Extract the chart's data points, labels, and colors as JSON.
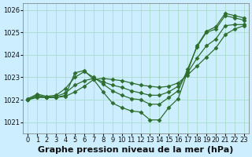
{
  "title": "Graphe pression niveau de la mer (hPa)",
  "bg_color": "#cceeff",
  "grid_color": "#aaddcc",
  "line_color": "#2d6e2d",
  "xlim": [
    -0.5,
    23.5
  ],
  "ylim": [
    1020.5,
    1026.3
  ],
  "yticks": [
    1021,
    1022,
    1023,
    1024,
    1025,
    1026
  ],
  "xticks": [
    0,
    1,
    2,
    3,
    4,
    5,
    6,
    7,
    8,
    9,
    10,
    11,
    12,
    13,
    14,
    15,
    16,
    17,
    18,
    19,
    20,
    21,
    22,
    23
  ],
  "series": [
    [
      1022.0,
      1022.2,
      1022.1,
      1022.1,
      1022.2,
      1023.2,
      1023.3,
      1022.9,
      1022.35,
      1021.85,
      1021.65,
      1021.5,
      1021.45,
      1021.1,
      1021.1,
      1021.65,
      1022.05,
      1023.25,
      1024.4,
      1025.05,
      1025.25,
      1025.85,
      1025.75,
      1025.65
    ],
    [
      1022.05,
      1022.25,
      1022.15,
      1022.2,
      1022.5,
      1023.0,
      1023.25,
      1023.0,
      1022.7,
      1022.4,
      1022.2,
      1022.05,
      1022.0,
      1021.8,
      1021.8,
      1022.1,
      1022.4,
      1023.35,
      1024.35,
      1025.0,
      1025.15,
      1025.75,
      1025.65,
      1025.55
    ],
    [
      1022.0,
      1022.15,
      1022.1,
      1022.15,
      1022.3,
      1022.65,
      1022.85,
      1022.95,
      1022.8,
      1022.65,
      1022.55,
      1022.4,
      1022.3,
      1022.2,
      1022.2,
      1022.35,
      1022.6,
      1023.2,
      1023.85,
      1024.4,
      1024.7,
      1025.3,
      1025.35,
      1025.35
    ],
    [
      1022.0,
      1022.1,
      1022.1,
      1022.1,
      1022.15,
      1022.35,
      1022.6,
      1022.9,
      1022.95,
      1022.9,
      1022.85,
      1022.75,
      1022.65,
      1022.6,
      1022.55,
      1022.6,
      1022.75,
      1023.1,
      1023.5,
      1023.9,
      1024.3,
      1024.9,
      1025.15,
      1025.3
    ]
  ],
  "marker": "D",
  "markersize": 2.5,
  "linewidth": 0.9,
  "tick_fontsize": 6,
  "xlabel_fontsize": 8
}
